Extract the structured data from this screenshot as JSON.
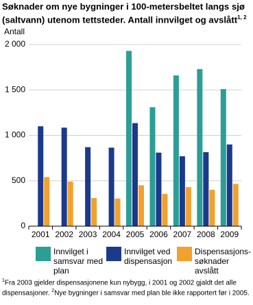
{
  "chart_data": {
    "type": "bar",
    "title": "Søknader om nye bygninger i 100-metersbeltet langs sjø (saltvann) utenom tettsteder. Antall innvilget og avslått",
    "title_note": "1, 2",
    "y_label": "Antall",
    "categories": [
      "2001",
      "2002",
      "2003",
      "2004",
      "2005",
      "2006",
      "2007",
      "2008",
      "2009"
    ],
    "series": [
      {
        "name": "Innvilget i samsvar med plan",
        "color": "#2b9e96",
        "values": [
          null,
          null,
          null,
          null,
          1930,
          1310,
          1660,
          1730,
          1510
        ]
      },
      {
        "name": "Innvilget ved dispensasjon",
        "color": "#1b3a8c",
        "values": [
          1100,
          1085,
          870,
          865,
          1135,
          810,
          770,
          815,
          900
        ]
      },
      {
        "name": "Dispensasjons-søknader avslått",
        "color": "#f3a02c",
        "values": [
          540,
          490,
          310,
          305,
          450,
          355,
          430,
          400,
          465
        ]
      }
    ],
    "ylim": [
      0,
      2000
    ],
    "yticks": [
      0,
      500,
      {
        "value": 1000,
        "label": "1 000"
      },
      {
        "value": 1500,
        "label": "1 500"
      },
      {
        "value": 2000,
        "label": "2 000"
      }
    ],
    "grid": true,
    "footnotes": [
      {
        "mark": "1",
        "text": "Fra 2003 gjelder dispensasjonene kun nybygg, i 2001 og 2002 gjaldt det alle dispensasjoner."
      },
      {
        "mark": "2",
        "text": "Nye bygninger i samsvar med plan ble ikke rapportert før i 2005."
      }
    ]
  }
}
